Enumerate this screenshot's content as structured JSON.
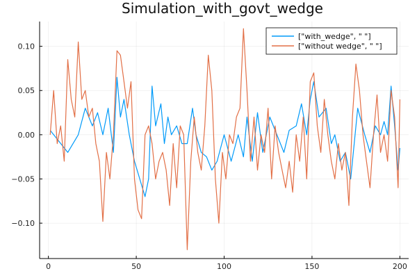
{
  "chart_data": {
    "type": "line",
    "title": "Simulation_with_govt_wedge",
    "xlabel": "",
    "ylabel": "",
    "xlim": [
      -5,
      205
    ],
    "ylim": [
      -0.14,
      0.128
    ],
    "x_ticks": [
      0,
      50,
      100,
      150,
      200
    ],
    "x_tick_labels": [
      "0",
      "50",
      "100",
      "150",
      "200"
    ],
    "y_ticks": [
      -0.1,
      -0.05,
      0.0,
      0.05,
      0.1
    ],
    "y_tick_labels": [
      "−0.10",
      "−0.05",
      "0.00",
      "0.05",
      "0.10"
    ],
    "grid": true,
    "legend_position": "top-right",
    "series": [
      {
        "name": "[\"with_wedge\", \" \"]",
        "color": "#009af9",
        "x": [
          1,
          11,
          17,
          21,
          25,
          28,
          31,
          34,
          37,
          39,
          41,
          43,
          46,
          49,
          52,
          55,
          57,
          59,
          61,
          64,
          66,
          68,
          70,
          73,
          76,
          79,
          82,
          84,
          87,
          90,
          93,
          96,
          100,
          104,
          108,
          111,
          113,
          116,
          119,
          122,
          126,
          130,
          134,
          137,
          141,
          144,
          147,
          149,
          151,
          154,
          158,
          161,
          163,
          166,
          169,
          172,
          176,
          180,
          183,
          186,
          189,
          191,
          193,
          195,
          197,
          199,
          200
        ],
        "y": [
          0.005,
          -0.02,
          0.0,
          0.03,
          0.01,
          0.025,
          0.0,
          0.03,
          -0.02,
          0.065,
          0.02,
          0.04,
          0.0,
          -0.03,
          -0.05,
          -0.07,
          -0.05,
          0.055,
          0.01,
          0.035,
          -0.01,
          0.02,
          0.0,
          0.01,
          -0.01,
          -0.01,
          0.03,
          0.0,
          -0.02,
          -0.025,
          -0.04,
          -0.03,
          0.0,
          -0.03,
          0.0,
          -0.025,
          0.02,
          -0.03,
          0.025,
          -0.02,
          0.02,
          0.0,
          -0.02,
          0.005,
          0.01,
          0.035,
          0.0,
          0.04,
          0.06,
          0.02,
          0.03,
          -0.01,
          0.0,
          -0.03,
          -0.02,
          -0.05,
          0.03,
          0.0,
          -0.02,
          0.01,
          0.0,
          0.015,
          0.0,
          0.055,
          0.01,
          -0.04,
          -0.015
        ]
      },
      {
        "name": "[\"without wedge\", \" \"]",
        "color": "#e26f46",
        "x": [
          1,
          3,
          5,
          7,
          9,
          11,
          13,
          15,
          17,
          19,
          21,
          23,
          25,
          27,
          29,
          31,
          33,
          35,
          37,
          39,
          41,
          43,
          45,
          47,
          49,
          51,
          53,
          55,
          57,
          59,
          61,
          63,
          65,
          67,
          69,
          71,
          73,
          75,
          77,
          79,
          81,
          83,
          85,
          87,
          89,
          91,
          93,
          95,
          97,
          99,
          101,
          103,
          105,
          107,
          109,
          111,
          113,
          115,
          117,
          119,
          121,
          123,
          125,
          127,
          129,
          131,
          133,
          135,
          137,
          139,
          141,
          143,
          145,
          147,
          149,
          151,
          153,
          155,
          157,
          159,
          161,
          163,
          165,
          167,
          169,
          171,
          173,
          175,
          177,
          179,
          181,
          183,
          185,
          187,
          189,
          191,
          193,
          195,
          197,
          199,
          200
        ],
        "y": [
          0.0,
          0.05,
          -0.01,
          0.01,
          -0.03,
          0.085,
          0.04,
          0.02,
          0.105,
          0.04,
          0.05,
          0.02,
          0.03,
          -0.01,
          -0.03,
          -0.098,
          -0.02,
          -0.05,
          0.0,
          0.095,
          0.09,
          0.06,
          0.03,
          0.06,
          -0.05,
          -0.085,
          -0.095,
          0.0,
          0.01,
          -0.01,
          -0.05,
          -0.03,
          -0.02,
          -0.04,
          -0.08,
          -0.01,
          -0.06,
          0.01,
          0.0,
          -0.13,
          -0.03,
          0.02,
          -0.02,
          -0.04,
          0.01,
          0.09,
          0.05,
          -0.05,
          -0.1,
          -0.02,
          -0.05,
          0.0,
          -0.01,
          0.02,
          0.03,
          0.12,
          0.05,
          -0.03,
          0.02,
          -0.04,
          0.0,
          -0.02,
          0.03,
          -0.05,
          0.01,
          -0.02,
          -0.04,
          -0.06,
          -0.03,
          -0.065,
          0.0,
          -0.03,
          0.02,
          -0.05,
          0.06,
          0.07,
          0.01,
          -0.02,
          0.04,
          0.0,
          -0.03,
          -0.05,
          -0.01,
          -0.04,
          -0.02,
          -0.08,
          0.02,
          0.08,
          0.05,
          0.0,
          -0.03,
          -0.06,
          0.0,
          0.045,
          -0.02,
          0.0,
          -0.03,
          0.05,
          0.02,
          -0.06,
          0.04
        ]
      }
    ]
  }
}
